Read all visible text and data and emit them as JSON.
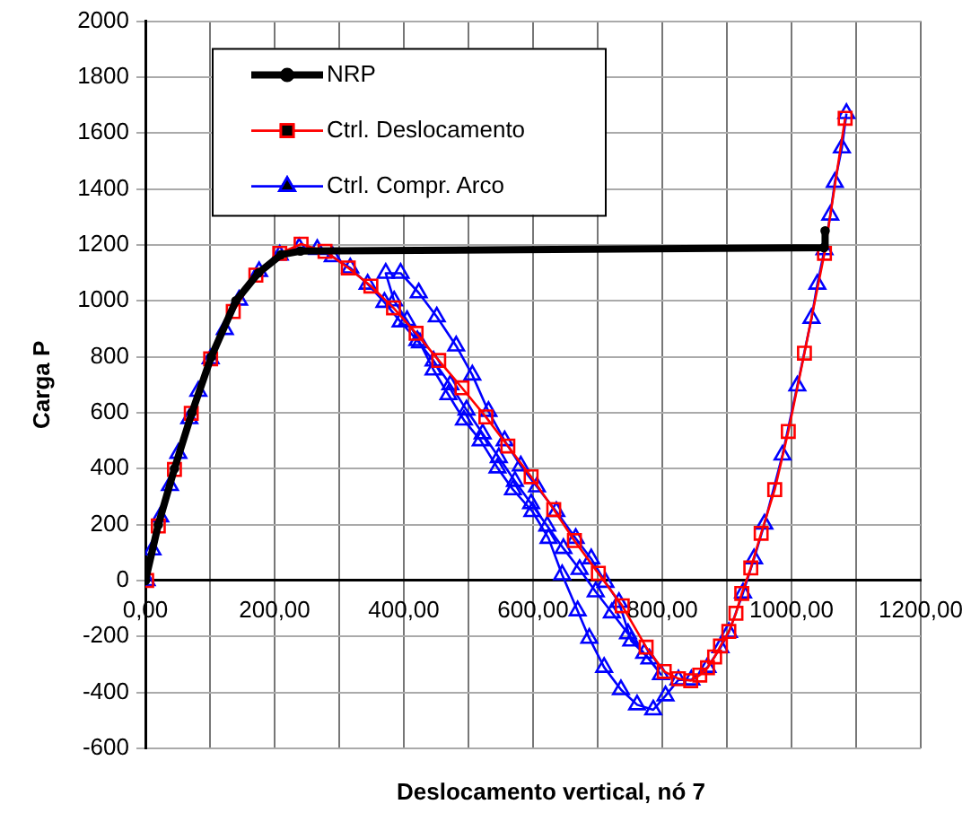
{
  "chart_data": {
    "type": "line",
    "xlabel": "Deslocamento vertical, nó 7",
    "ylabel": "Carga P",
    "xlim": [
      0,
      1200
    ],
    "xticks": [
      {
        "value": 0,
        "label": "0,00"
      },
      {
        "value": 100,
        "label": null
      },
      {
        "value": 200,
        "label": "200,00"
      },
      {
        "value": 300,
        "label": null
      },
      {
        "value": 400,
        "label": "400,00"
      },
      {
        "value": 500,
        "label": null
      },
      {
        "value": 600,
        "label": "600,00"
      },
      {
        "value": 700,
        "label": null
      },
      {
        "value": 800,
        "label": "800,00"
      },
      {
        "value": 900,
        "label": null
      },
      {
        "value": 1000,
        "label": "1000,00"
      },
      {
        "value": 1100,
        "label": null
      },
      {
        "value": 1200,
        "label": "1200,00"
      }
    ],
    "ylim": [
      -600,
      2000
    ],
    "yticks": [
      -600,
      -400,
      -200,
      0,
      200,
      400,
      600,
      800,
      1000,
      1200,
      1400,
      1600,
      1800,
      2000
    ],
    "grid": true,
    "legend": "top left",
    "series": [
      {
        "name": "NRP",
        "color": "#000000",
        "marker": "circle",
        "x": [
          0,
          20,
          45,
          72,
          102,
          140,
          175,
          210,
          240,
          1050,
          1052
        ],
        "values": [
          0,
          200,
          400,
          600,
          800,
          1000,
          1100,
          1165,
          1178,
          1190,
          1250
        ]
      },
      {
        "name": "Ctrl. Deslocamento",
        "color": "#ff0000",
        "marker": "square",
        "x": [
          2,
          20,
          45,
          71,
          101,
          136,
          171,
          208,
          241,
          278,
          314,
          349,
          384,
          419,
          454,
          490,
          527,
          561,
          597,
          632,
          664,
          701,
          738,
          775,
          803,
          825,
          844,
          858,
          870,
          881,
          890,
          903,
          914,
          923,
          937,
          953,
          974,
          995,
          1020,
          1051,
          1083
        ],
        "values": [
          0,
          195,
          397,
          598,
          793,
          962,
          1092,
          1170,
          1203,
          1177,
          1118,
          1053,
          975,
          884,
          787,
          689,
          585,
          481,
          371,
          254,
          143,
          26,
          -90,
          -238,
          -325,
          -351,
          -358,
          -338,
          -312,
          -273,
          -234,
          -182,
          -117,
          -46,
          45,
          169,
          325,
          533,
          813,
          1170,
          1653
        ]
      },
      {
        "name": "Ctrl. Compr. Arco",
        "color": "#0000ff",
        "marker": "triangle",
        "x": [
          2,
          11,
          23,
          38,
          51,
          68,
          82,
          101,
          123,
          145,
          176,
          208,
          238,
          266,
          290,
          317,
          344,
          370,
          395,
          421,
          446,
          472,
          497,
          522,
          547,
          572,
          597,
          622,
          647,
          672,
          697,
          722,
          747,
          772,
          798,
          780,
          752,
          733,
          712,
          690,
          666,
          636,
          606,
          581,
          556,
          531,
          506,
          481,
          451,
          423,
          395,
          372,
          385,
          405,
          425,
          446,
          469,
          493,
          519,
          545,
          569,
          599,
          624,
          645,
          669,
          687,
          710,
          736,
          761,
          786,
          805,
          825,
          845,
          870,
          890,
          903,
          925,
          942,
          958,
          986,
          1009,
          1031,
          1040,
          1051,
          1060,
          1067,
          1078,
          1085
        ],
        "values": [
          0,
          110,
          228,
          340,
          455,
          579,
          677,
          793,
          898,
          1003,
          1105,
          1164,
          1190,
          1184,
          1158,
          1118,
          1060,
          995,
          925,
          858,
          785,
          700,
          610,
          525,
          440,
          355,
          275,
          195,
          115,
          40,
          -40,
          -115,
          -190,
          -260,
          -336,
          -280,
          -216,
          -78,
          -6,
          78,
          151,
          247,
          335,
          410,
          500,
          605,
          735,
          839,
          943,
          1029,
          1099,
          1099,
          1000,
          930,
          850,
          753,
          665,
          574,
          500,
          403,
          325,
          247,
          151,
          21,
          -108,
          -206,
          -310,
          -390,
          -444,
          -462,
          -412,
          -355,
          -355,
          -310,
          -240,
          -185,
          -44,
          78,
          202,
          449,
          696,
          938,
          1060,
          1183,
          1307,
          1424,
          1547,
          1670
        ]
      }
    ]
  }
}
